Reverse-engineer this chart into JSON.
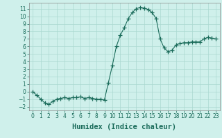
{
  "xlabel": "Humidex (Indice chaleur)",
  "x_values": [
    0,
    0.5,
    1,
    1.5,
    2,
    2.5,
    3,
    3.5,
    4,
    4.5,
    5,
    5.5,
    6,
    6.5,
    7,
    7.5,
    8,
    8.5,
    9,
    9.5,
    10,
    10.5,
    11,
    11.5,
    12,
    12.5,
    13,
    13.5,
    14,
    14.5,
    15,
    15.5,
    16,
    16.5,
    17,
    17.5,
    18,
    18.5,
    19,
    19.5,
    20,
    20.5,
    21,
    21.5,
    22,
    22.5,
    23
  ],
  "y_values": [
    0.0,
    -0.5,
    -1.0,
    -1.5,
    -1.7,
    -1.3,
    -1.0,
    -0.9,
    -0.8,
    -0.9,
    -0.8,
    -0.8,
    -0.7,
    -0.9,
    -0.8,
    -0.9,
    -1.0,
    -1.0,
    -1.1,
    1.2,
    3.5,
    6.0,
    7.5,
    8.5,
    9.7,
    10.5,
    11.0,
    11.2,
    11.1,
    10.9,
    10.5,
    9.7,
    7.0,
    5.8,
    5.3,
    5.5,
    6.2,
    6.4,
    6.5,
    6.5,
    6.6,
    6.6,
    6.6,
    7.0,
    7.2,
    7.1,
    7.0
  ],
  "line_color": "#1a6b5a",
  "marker": "+",
  "marker_size": 4,
  "xlim": [
    -0.5,
    23.5
  ],
  "ylim": [
    -2.5,
    11.8
  ],
  "yticks": [
    -2,
    -1,
    0,
    1,
    2,
    3,
    4,
    5,
    6,
    7,
    8,
    9,
    10,
    11
  ],
  "xticks": [
    0,
    1,
    2,
    3,
    4,
    5,
    6,
    7,
    8,
    9,
    10,
    11,
    12,
    13,
    14,
    15,
    16,
    17,
    18,
    19,
    20,
    21,
    22,
    23
  ],
  "bg_color": "#cff0eb",
  "grid_color": "#aad8d0",
  "tick_fontsize": 5.5,
  "xlabel_fontsize": 7.5
}
